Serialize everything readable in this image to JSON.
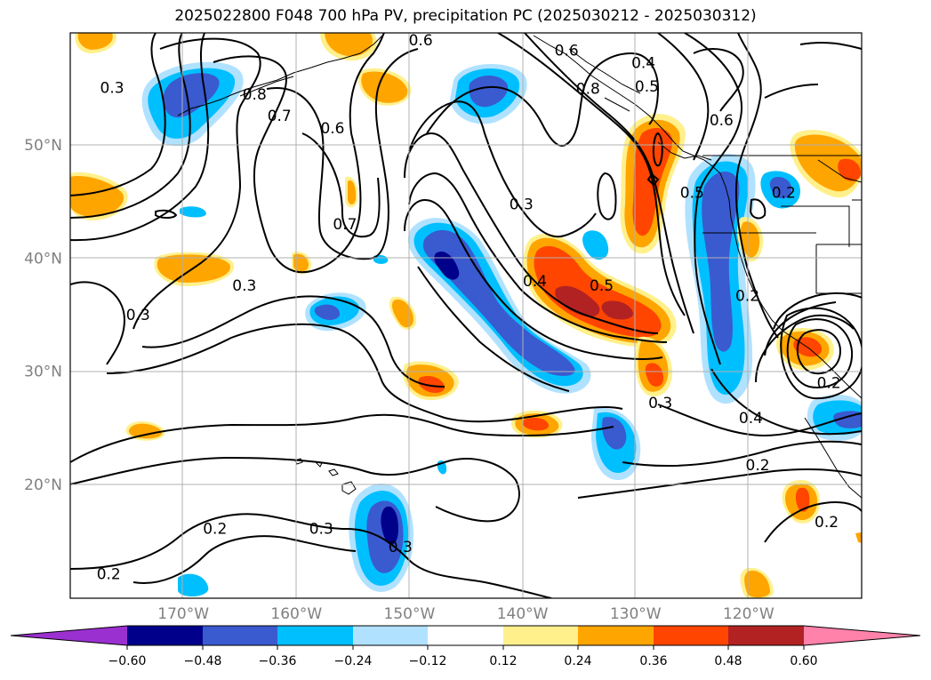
{
  "title": "2025022800 F048 700 hPa PV, precipitation PC (2025030212 - 2025030312)",
  "map": {
    "lon_range": [
      -180,
      -110
    ],
    "lat_range": [
      10,
      60
    ],
    "lon_labels": [
      {
        "lon": -170,
        "label": "170°W"
      },
      {
        "lon": -160,
        "label": "160°W"
      },
      {
        "lon": -150,
        "label": "150°W"
      },
      {
        "lon": -140,
        "label": "140°W"
      },
      {
        "lon": -130,
        "label": "130°W"
      },
      {
        "lon": -120,
        "label": "120°W"
      }
    ],
    "lat_labels": [
      {
        "lat": 50,
        "label": "50°N"
      },
      {
        "lat": 40,
        "label": "40°N"
      },
      {
        "lat": 30,
        "label": "30°N"
      },
      {
        "lat": 20,
        "label": "20°N"
      }
    ],
    "contour_labels": [
      {
        "text": "0.3",
        "lon": -176.3,
        "lat": 55.1
      },
      {
        "text": "0.8",
        "lon": -163.7,
        "lat": 54.5
      },
      {
        "text": "0.7",
        "lon": -161.5,
        "lat": 52.6
      },
      {
        "text": "0.6",
        "lon": -149.0,
        "lat": 59.3
      },
      {
        "text": "0.6",
        "lon": -156.8,
        "lat": 51.5
      },
      {
        "text": "0.7",
        "lon": -155.7,
        "lat": 43.0
      },
      {
        "text": "0.3",
        "lon": -174.0,
        "lat": 35.0
      },
      {
        "text": "0.3",
        "lon": -164.6,
        "lat": 37.6
      },
      {
        "text": "0.6",
        "lon": -136.1,
        "lat": 58.4
      },
      {
        "text": "0.8",
        "lon": -134.2,
        "lat": 55.0
      },
      {
        "text": "0.4",
        "lon": -129.3,
        "lat": 57.3
      },
      {
        "text": "0.5",
        "lon": -129.0,
        "lat": 55.2
      },
      {
        "text": "0.6",
        "lon": -122.4,
        "lat": 52.2
      },
      {
        "text": "0.3",
        "lon": -140.1,
        "lat": 44.8
      },
      {
        "text": "0.5",
        "lon": -125.0,
        "lat": 45.8
      },
      {
        "text": "0.4",
        "lon": -138.9,
        "lat": 38.0
      },
      {
        "text": "0.5",
        "lon": -133.0,
        "lat": 37.6
      },
      {
        "text": "0.2",
        "lon": -120.1,
        "lat": 36.7
      },
      {
        "text": "0.2",
        "lon": -116.9,
        "lat": 45.8
      },
      {
        "text": "0.4",
        "lon": -119.8,
        "lat": 25.9
      },
      {
        "text": "0.3",
        "lon": -127.8,
        "lat": 27.2
      },
      {
        "text": "0.2",
        "lon": -119.2,
        "lat": 21.7
      },
      {
        "text": "0.2",
        "lon": -113.1,
        "lat": 16.7
      },
      {
        "text": "0.2",
        "lon": -112.9,
        "lat": 29.0
      },
      {
        "text": "0.2",
        "lon": -167.2,
        "lat": 16.1
      },
      {
        "text": "0.3",
        "lon": -157.8,
        "lat": 16.1
      },
      {
        "text": "0.3",
        "lon": -150.8,
        "lat": 14.5
      },
      {
        "text": "0.2",
        "lon": -176.6,
        "lat": 12.1
      }
    ]
  },
  "colorbar": {
    "ticks": [
      "−0.60",
      "−0.48",
      "−0.36",
      "−0.24",
      "−0.12",
      "0.12",
      "0.24",
      "0.36",
      "0.48",
      "0.60"
    ],
    "colors": {
      "under": "#9b30d0",
      "neg_060": "#00008b",
      "neg_048": "#3a5ad0",
      "neg_036": "#00bfff",
      "neg_024": "#b0e2ff",
      "zero": "#ffffff",
      "pos_012": "#fff08c",
      "pos_024": "#ffa500",
      "pos_036": "#ff4500",
      "pos_048": "#b22222",
      "over": "#ff82ab"
    }
  }
}
